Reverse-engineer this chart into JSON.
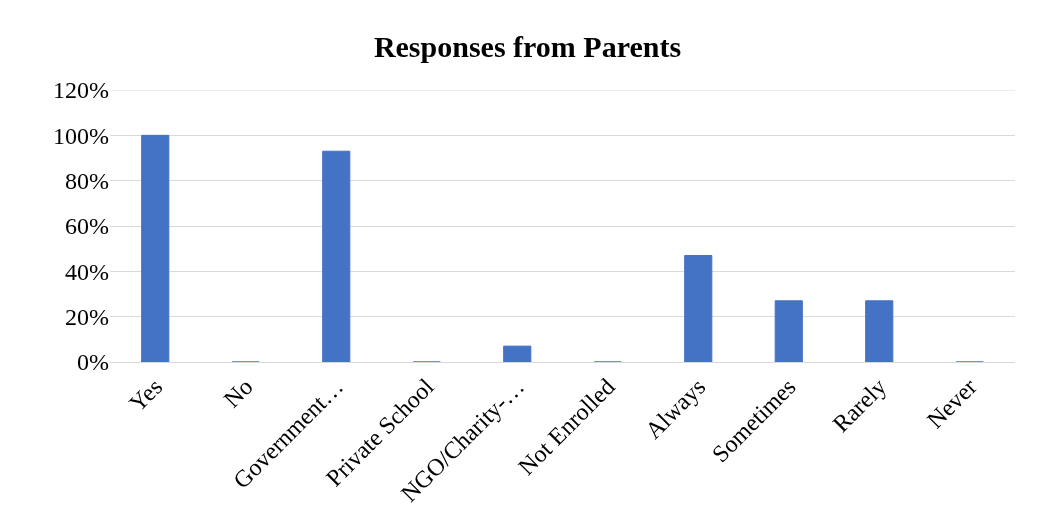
{
  "chart_data": {
    "type": "bar",
    "title": "Responses from Parents",
    "categories": [
      "Yes",
      "No",
      "Government…",
      "Private School",
      "NGO/Charity-…",
      "Not Enrolled",
      "Always",
      "Sometimes",
      "Rarely",
      "Never"
    ],
    "values": [
      100,
      0,
      93,
      0,
      7,
      0,
      47,
      27,
      27,
      0
    ],
    "color": "#4472c4",
    "ylim": [
      0,
      120
    ],
    "yticks": [
      {
        "value": 0,
        "label": "0%"
      },
      {
        "value": 20,
        "label": "20%"
      },
      {
        "value": 40,
        "label": "40%"
      },
      {
        "value": 60,
        "label": "60%"
      },
      {
        "value": 80,
        "label": "80%"
      },
      {
        "value": 100,
        "label": "100%"
      },
      {
        "value": 120,
        "label": "120%"
      }
    ],
    "grid": "y",
    "legend": false
  }
}
